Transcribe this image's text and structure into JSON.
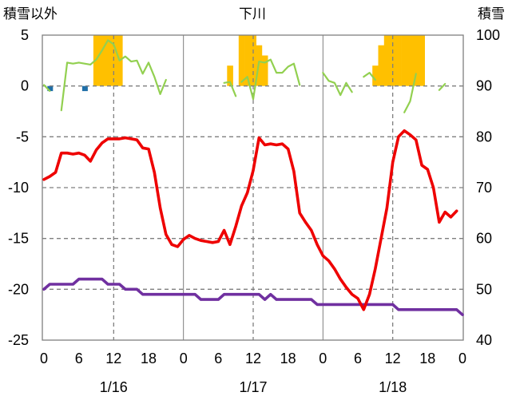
{
  "chart_data": {
    "type": "line",
    "title": "下川",
    "left_axis_label": "積雪以外",
    "right_axis_label": "積雪",
    "y_left": {
      "min": -25,
      "max": 5,
      "ticks": [
        "5",
        "0",
        "-5",
        "-10",
        "-15",
        "-20",
        "-25"
      ]
    },
    "y_right": {
      "min": 40,
      "max": 100,
      "ticks": [
        "100",
        "90",
        "80",
        "70",
        "60",
        "50",
        "40"
      ]
    },
    "x": {
      "min": 0,
      "max": 72,
      "tick_hours": [
        0,
        6,
        12,
        18,
        24,
        30,
        36,
        42,
        48,
        54,
        60,
        66,
        72
      ],
      "tick_labels": [
        "0",
        "6",
        "12",
        "18",
        "0",
        "6",
        "12",
        "18",
        "0",
        "6",
        "12",
        "18",
        "0"
      ]
    },
    "date_labels": [
      {
        "text": "1/16",
        "hour": 12
      },
      {
        "text": "1/17",
        "hour": 36
      },
      {
        "text": "1/18",
        "hour": 60
      }
    ],
    "colors": {
      "temperature": "#ee0000",
      "snow_depth": "#7030a0",
      "wind": "#92d050",
      "snowfall": "#ffc000",
      "precip": "#1f6fa8",
      "grid": "#7f7f7f",
      "axis": "#7f7f7f"
    },
    "series": [
      {
        "key": "temperature",
        "axis": "left",
        "points": [
          [
            0,
            -9.2
          ],
          [
            1,
            -8.9
          ],
          [
            2,
            -8.5
          ],
          [
            3,
            -6.6
          ],
          [
            4,
            -6.6
          ],
          [
            5,
            -6.7
          ],
          [
            6,
            -6.6
          ],
          [
            7,
            -6.8
          ],
          [
            8,
            -7.4
          ],
          [
            9,
            -6.3
          ],
          [
            10,
            -5.6
          ],
          [
            11,
            -5.2
          ],
          [
            12,
            -5.2
          ],
          [
            13,
            -5.2
          ],
          [
            14,
            -5.1
          ],
          [
            15,
            -5.2
          ],
          [
            16,
            -5.3
          ],
          [
            17,
            -6.1
          ],
          [
            18,
            -6.2
          ],
          [
            19,
            -8.5
          ],
          [
            20,
            -12
          ],
          [
            21,
            -14.6
          ],
          [
            22,
            -15.6
          ],
          [
            23,
            -15.8
          ],
          [
            24,
            -15.1
          ],
          [
            25,
            -14.7
          ],
          [
            26,
            -15.0
          ],
          [
            27,
            -15.2
          ],
          [
            28,
            -15.3
          ],
          [
            29,
            -15.4
          ],
          [
            30,
            -15.3
          ],
          [
            31,
            -14.2
          ],
          [
            32,
            -15.6
          ],
          [
            33,
            -13.8
          ],
          [
            34,
            -11.8
          ],
          [
            35,
            -10.5
          ],
          [
            36,
            -8.3
          ],
          [
            37,
            -5.1
          ],
          [
            38,
            -5.8
          ],
          [
            39,
            -5.7
          ],
          [
            40,
            -5.8
          ],
          [
            41,
            -5.7
          ],
          [
            42,
            -6.2
          ],
          [
            43,
            -8.4
          ],
          [
            44,
            -12.5
          ],
          [
            45,
            -13.4
          ],
          [
            46,
            -14.2
          ],
          [
            47,
            -15.6
          ],
          [
            48,
            -16.7
          ],
          [
            49,
            -17.2
          ],
          [
            50,
            -18.0
          ],
          [
            51,
            -19.0
          ],
          [
            52,
            -19.8
          ],
          [
            53,
            -20.5
          ],
          [
            54,
            -20.9
          ],
          [
            55,
            -22.0
          ],
          [
            56,
            -20.5
          ],
          [
            57,
            -18.0
          ],
          [
            58,
            -15.0
          ],
          [
            59,
            -12.0
          ],
          [
            60,
            -7.5
          ],
          [
            61,
            -5.0
          ],
          [
            62,
            -4.4
          ],
          [
            63,
            -4.8
          ],
          [
            64,
            -5.3
          ],
          [
            65,
            -7.8
          ],
          [
            66,
            -8.2
          ],
          [
            67,
            -10.0
          ],
          [
            68,
            -13.4
          ],
          [
            69,
            -12.4
          ],
          [
            70,
            -12.9
          ],
          [
            71,
            -12.3
          ]
        ]
      },
      {
        "key": "snow_depth",
        "axis": "right",
        "points": [
          [
            0,
            50
          ],
          [
            1,
            51
          ],
          [
            4,
            51
          ],
          [
            5,
            51
          ],
          [
            6,
            52
          ],
          [
            10,
            52
          ],
          [
            11,
            51
          ],
          [
            13,
            51
          ],
          [
            14,
            50
          ],
          [
            16,
            50
          ],
          [
            17,
            49
          ],
          [
            26,
            49
          ],
          [
            27,
            48
          ],
          [
            30,
            48
          ],
          [
            31,
            49
          ],
          [
            37,
            49
          ],
          [
            38,
            48
          ],
          [
            39,
            49
          ],
          [
            40,
            48
          ],
          [
            46,
            48
          ],
          [
            47,
            47
          ],
          [
            60,
            47
          ],
          [
            61,
            46
          ],
          [
            71,
            46
          ],
          [
            72,
            45
          ]
        ]
      },
      {
        "key": "wind",
        "axis": "left",
        "segments": [
          [
            [
              0,
              0.1
            ],
            [
              1,
              -0.5
            ]
          ],
          [
            [
              3,
              -2.4
            ],
            [
              4,
              2.3
            ],
            [
              5,
              2.2
            ],
            [
              6,
              2.3
            ],
            [
              7,
              2.2
            ],
            [
              8,
              2.1
            ],
            [
              9,
              2.6
            ],
            [
              10,
              3.5
            ],
            [
              11,
              4.5
            ],
            [
              12,
              4.1
            ],
            [
              13,
              2.5
            ],
            [
              14,
              2.9
            ],
            [
              15,
              2.4
            ],
            [
              16,
              2.5
            ],
            [
              17,
              1.2
            ],
            [
              18,
              2.3
            ],
            [
              19,
              0.9
            ],
            [
              20,
              -0.8
            ],
            [
              21,
              0.6
            ]
          ],
          [
            [
              31,
              0.3
            ],
            [
              32,
              0.4
            ],
            [
              33,
              -1.0
            ]
          ],
          [
            [
              34,
              0.4
            ],
            [
              35,
              0.9
            ],
            [
              36,
              -1.3
            ],
            [
              37,
              2.4
            ],
            [
              38,
              2.3
            ],
            [
              39,
              2.6
            ],
            [
              40,
              1.3
            ],
            [
              41,
              1.3
            ],
            [
              42,
              1.9
            ],
            [
              43,
              2.2
            ],
            [
              44,
              0.1
            ]
          ],
          [
            [
              48,
              1.3
            ],
            [
              49,
              0.5
            ],
            [
              50,
              0.3
            ],
            [
              51,
              -0.9
            ],
            [
              52,
              0.3
            ],
            [
              53,
              -0.6
            ]
          ],
          [
            [
              55,
              0.9
            ],
            [
              56,
              1.3
            ],
            [
              57,
              0.6
            ]
          ],
          [
            [
              62,
              -2.6
            ],
            [
              63,
              -1.5
            ],
            [
              64,
              1.2
            ]
          ],
          [
            [
              68,
              -0.4
            ],
            [
              69,
              0.2
            ]
          ]
        ]
      },
      {
        "key": "snowfall",
        "axis": "left",
        "bars": [
          [
            9,
            5
          ],
          [
            10,
            5
          ],
          [
            11,
            5
          ],
          [
            12,
            5
          ],
          [
            13,
            5
          ],
          [
            32,
            2
          ],
          [
            34,
            5
          ],
          [
            35,
            5
          ],
          [
            36,
            5
          ],
          [
            37,
            4
          ],
          [
            38,
            3
          ],
          [
            57,
            2
          ],
          [
            58,
            4
          ],
          [
            59,
            5
          ],
          [
            60,
            5
          ],
          [
            61,
            5
          ],
          [
            62,
            5
          ],
          [
            63,
            5
          ],
          [
            64,
            5
          ],
          [
            65,
            5
          ]
        ]
      },
      {
        "key": "precip",
        "axis": "left",
        "bars": [
          [
            1,
            -0.5
          ],
          [
            7,
            -0.5
          ]
        ]
      }
    ]
  }
}
